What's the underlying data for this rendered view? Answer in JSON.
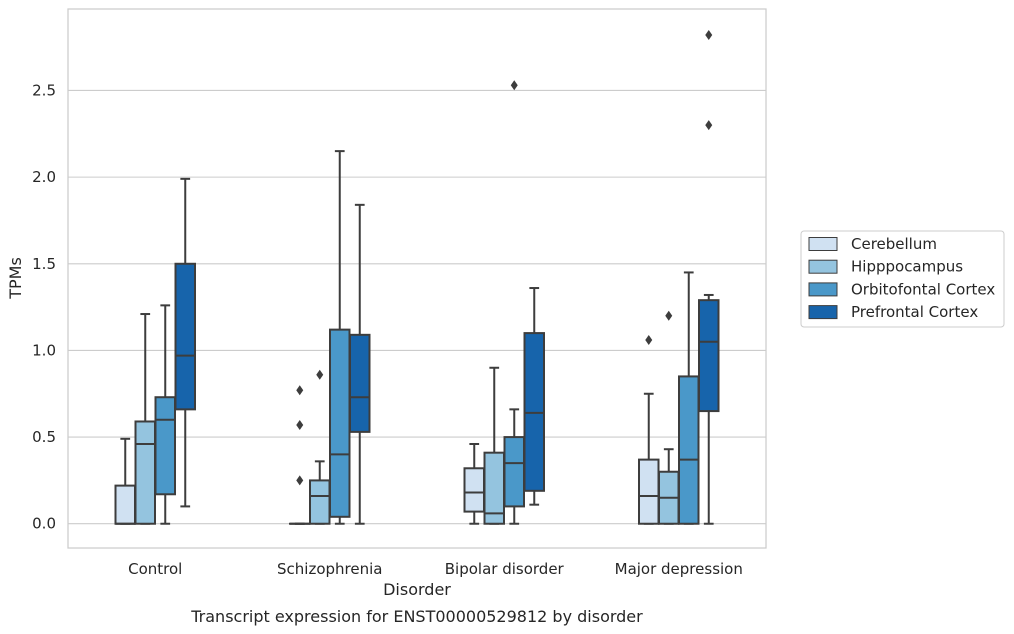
{
  "caption": "Transcript expression for ENST00000529812 by disorder",
  "chart_data": {
    "type": "box",
    "xlabel": "Disorder",
    "ylabel": "TPMs",
    "ylim": [
      -0.14,
      2.97
    ],
    "yticks": [
      0.0,
      0.5,
      1.0,
      1.5,
      2.0,
      2.5
    ],
    "ytick_labels": [
      "0.0",
      "0.5",
      "1.0",
      "1.5",
      "2.0",
      "2.5"
    ],
    "grid": "horizontal",
    "legend_position": "right",
    "categories": [
      "Control",
      "Schizophrenia",
      "Bipolar disorder",
      "Major depression"
    ],
    "series": [
      {
        "name": "Cerebellum",
        "color": "#d0e1f2",
        "boxes": [
          {
            "whislo": 0.0,
            "q1": 0.0,
            "med": 0.0,
            "q3": 0.22,
            "whishi": 0.49,
            "fliers": []
          },
          {
            "whislo": 0.0,
            "q1": 0.0,
            "med": 0.0,
            "q3": 0.0,
            "whishi": 0.0,
            "fliers": [
              0.25,
              0.57,
              0.77
            ]
          },
          {
            "whislo": 0.0,
            "q1": 0.07,
            "med": 0.18,
            "q3": 0.32,
            "whishi": 0.46,
            "fliers": []
          },
          {
            "whislo": 0.0,
            "q1": 0.0,
            "med": 0.16,
            "q3": 0.37,
            "whishi": 0.75,
            "fliers": [
              1.06
            ]
          }
        ]
      },
      {
        "name": "Hipppocampus",
        "color": "#94c4df",
        "boxes": [
          {
            "whislo": 0.0,
            "q1": 0.0,
            "med": 0.46,
            "q3": 0.59,
            "whishi": 1.21,
            "fliers": []
          },
          {
            "whislo": 0.0,
            "q1": 0.0,
            "med": 0.16,
            "q3": 0.25,
            "whishi": 0.36,
            "fliers": [
              0.86
            ]
          },
          {
            "whislo": 0.0,
            "q1": 0.0,
            "med": 0.06,
            "q3": 0.41,
            "whishi": 0.9,
            "fliers": []
          },
          {
            "whislo": 0.0,
            "q1": 0.0,
            "med": 0.15,
            "q3": 0.3,
            "whishi": 0.43,
            "fliers": [
              1.2
            ]
          }
        ]
      },
      {
        "name": "Orbitofontal Cortex",
        "color": "#4a98c9",
        "boxes": [
          {
            "whislo": 0.0,
            "q1": 0.17,
            "med": 0.6,
            "q3": 0.73,
            "whishi": 1.26,
            "fliers": []
          },
          {
            "whislo": 0.0,
            "q1": 0.04,
            "med": 0.4,
            "q3": 1.12,
            "whishi": 2.15,
            "fliers": []
          },
          {
            "whislo": 0.0,
            "q1": 0.1,
            "med": 0.35,
            "q3": 0.5,
            "whishi": 0.66,
            "fliers": [
              2.53
            ]
          },
          {
            "whislo": 0.0,
            "q1": 0.0,
            "med": 0.37,
            "q3": 0.85,
            "whishi": 1.45,
            "fliers": []
          }
        ]
      },
      {
        "name": "Prefrontal Cortex",
        "color": "#1764ab",
        "boxes": [
          {
            "whislo": 0.1,
            "q1": 0.66,
            "med": 0.97,
            "q3": 1.5,
            "whishi": 1.99,
            "fliers": []
          },
          {
            "whislo": 0.0,
            "q1": 0.53,
            "med": 0.73,
            "q3": 1.09,
            "whishi": 1.84,
            "fliers": []
          },
          {
            "whislo": 0.11,
            "q1": 0.19,
            "med": 0.64,
            "q3": 1.1,
            "whishi": 1.36,
            "fliers": []
          },
          {
            "whislo": 0.0,
            "q1": 0.65,
            "med": 1.05,
            "q3": 1.29,
            "whishi": 1.32,
            "fliers": [
              2.3,
              2.82
            ]
          }
        ]
      }
    ]
  }
}
